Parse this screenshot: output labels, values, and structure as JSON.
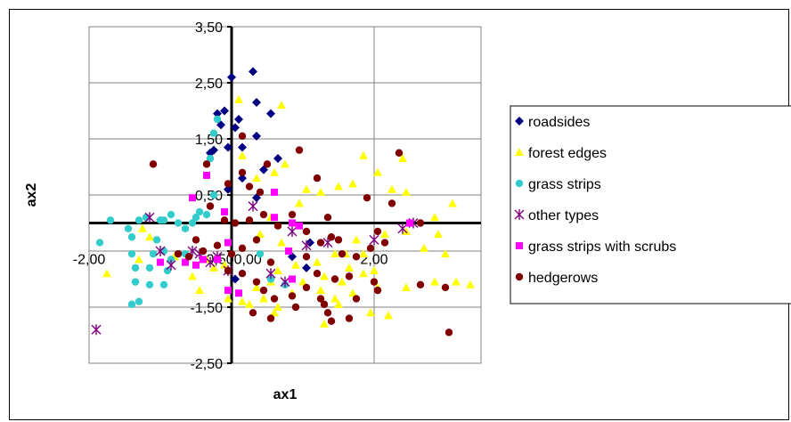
{
  "chart_data": {
    "type": "scatter",
    "title": "",
    "xlabel": "ax1",
    "ylabel": "ax2",
    "xlim": [
      -2.0,
      3.5
    ],
    "ylim": [
      -2.5,
      3.5
    ],
    "x_ticks": [
      {
        "value": -2.0,
        "label": "-2,00"
      },
      {
        "value": 0.0,
        "label": "-0,500,00"
      },
      {
        "value": 2.0,
        "label": "2,00"
      }
    ],
    "y_ticks": [
      {
        "value": 3.5,
        "label": "3,50"
      },
      {
        "value": 2.5,
        "label": "2,50"
      },
      {
        "value": 1.5,
        "label": "1,50"
      },
      {
        "value": 0.5,
        "label": "0,50"
      },
      {
        "value": -1.5,
        "label": "-1,50"
      },
      {
        "value": -2.5,
        "label": "-2,50"
      }
    ],
    "grid": true,
    "legend_position": "right",
    "series": [
      {
        "name": "roadsides",
        "marker": "diamond",
        "color": "#000080",
        "points": [
          [
            0.0,
            2.6
          ],
          [
            0.3,
            2.7
          ],
          [
            0.35,
            2.15
          ],
          [
            0.55,
            1.95
          ],
          [
            0.1,
            1.85
          ],
          [
            0.35,
            1.55
          ],
          [
            0.05,
            1.7
          ],
          [
            -0.2,
            1.95
          ],
          [
            -0.1,
            2.0
          ],
          [
            -0.15,
            1.75
          ],
          [
            -0.05,
            1.35
          ],
          [
            -0.25,
            1.3
          ],
          [
            -0.3,
            1.25
          ],
          [
            0.15,
            1.35
          ],
          [
            0.65,
            1.15
          ],
          [
            0.35,
            0.45
          ],
          [
            0.15,
            0.8
          ],
          [
            0.45,
            0.95
          ],
          [
            -0.05,
            0.6
          ],
          [
            0.05,
            -1.0
          ],
          [
            1.05,
            -0.8
          ],
          [
            1.1,
            -0.35
          ],
          [
            0.85,
            -0.6
          ]
        ]
      },
      {
        "name": "forest edges",
        "marker": "triangle",
        "color": "#ffff00",
        "points": [
          [
            0.1,
            2.2
          ],
          [
            0.7,
            2.1
          ],
          [
            0.15,
            1.2
          ],
          [
            0.35,
            0.8
          ],
          [
            0.6,
            0.9
          ],
          [
            0.75,
            1.05
          ],
          [
            0.95,
            0.35
          ],
          [
            1.05,
            0.6
          ],
          [
            1.25,
            0.55
          ],
          [
            1.5,
            0.65
          ],
          [
            1.7,
            0.7
          ],
          [
            1.85,
            1.2
          ],
          [
            2.05,
            0.9
          ],
          [
            2.25,
            0.6
          ],
          [
            2.4,
            1.15
          ],
          [
            2.45,
            0.55
          ],
          [
            2.85,
            0.1
          ],
          [
            3.1,
            0.35
          ],
          [
            3.0,
            -0.55
          ],
          [
            2.7,
            -0.45
          ],
          [
            2.45,
            -0.15
          ],
          [
            2.15,
            -0.2
          ],
          [
            1.85,
            -0.55
          ],
          [
            1.65,
            -0.8
          ],
          [
            1.45,
            -0.55
          ],
          [
            1.3,
            -0.95
          ],
          [
            1.2,
            -0.7
          ],
          [
            0.9,
            -0.75
          ],
          [
            0.65,
            -0.85
          ],
          [
            0.55,
            -1.05
          ],
          [
            0.45,
            -1.35
          ],
          [
            0.25,
            -1.45
          ],
          [
            0.15,
            -1.4
          ],
          [
            0.35,
            -1.15
          ],
          [
            0.65,
            -1.5
          ],
          [
            0.85,
            -1.25
          ],
          [
            1.0,
            -1.05
          ],
          [
            1.25,
            -1.2
          ],
          [
            1.45,
            -1.35
          ],
          [
            1.55,
            -1.05
          ],
          [
            1.7,
            -1.25
          ],
          [
            1.85,
            -0.9
          ],
          [
            2.0,
            -0.85
          ],
          [
            2.05,
            -1.15
          ],
          [
            2.2,
            -1.65
          ],
          [
            2.45,
            -1.15
          ],
          [
            2.85,
            -1.05
          ],
          [
            3.15,
            -1.05
          ],
          [
            3.35,
            -1.1
          ],
          [
            1.95,
            -1.6
          ],
          [
            1.5,
            -1.45
          ],
          [
            1.3,
            -1.8
          ],
          [
            0.6,
            -1.6
          ],
          [
            -0.25,
            -0.8
          ],
          [
            -0.45,
            -1.2
          ],
          [
            -0.55,
            -0.95
          ],
          [
            -0.8,
            -0.6
          ],
          [
            -1.15,
            -0.25
          ],
          [
            -1.25,
            -0.1
          ],
          [
            -1.3,
            -0.65
          ],
          [
            -1.75,
            -0.9
          ],
          [
            -0.35,
            -0.65
          ],
          [
            0.4,
            -0.2
          ],
          [
            0.55,
            0.1
          ],
          [
            0.7,
            -0.35
          ],
          [
            -0.1,
            -0.75
          ],
          [
            -0.05,
            -1.35
          ],
          [
            1.6,
            -0.55
          ],
          [
            1.75,
            -0.3
          ],
          [
            2.9,
            -0.2
          ]
        ]
      },
      {
        "name": "grass strips",
        "marker": "circle",
        "color": "#33cccc",
        "points": [
          [
            -1.7,
            0.05
          ],
          [
            -1.85,
            -0.35
          ],
          [
            -1.45,
            -0.1
          ],
          [
            -1.3,
            0.05
          ],
          [
            -1.2,
            0.1
          ],
          [
            -1.0,
            0.05
          ],
          [
            -0.95,
            0.05
          ],
          [
            -0.85,
            0.15
          ],
          [
            -0.75,
            0.0
          ],
          [
            -0.65,
            -0.1
          ],
          [
            -0.55,
            0.0
          ],
          [
            -0.5,
            0.1
          ],
          [
            -0.45,
            0.2
          ],
          [
            -0.35,
            0.15
          ],
          [
            -0.3,
            0.3
          ],
          [
            -0.25,
            0.5
          ],
          [
            -1.4,
            -0.25
          ],
          [
            -1.4,
            -0.55
          ],
          [
            -1.35,
            -0.8
          ],
          [
            -1.15,
            -0.8
          ],
          [
            -1.1,
            -0.55
          ],
          [
            -1.05,
            -0.3
          ],
          [
            -0.95,
            -0.5
          ],
          [
            -0.9,
            -0.85
          ],
          [
            -0.85,
            -0.65
          ],
          [
            -0.75,
            -0.55
          ],
          [
            -0.65,
            -0.55
          ],
          [
            -1.35,
            -1.05
          ],
          [
            -1.15,
            -1.1
          ],
          [
            -1.4,
            -1.45
          ],
          [
            -1.3,
            -1.4
          ],
          [
            -0.95,
            -1.1
          ],
          [
            -0.2,
            1.85
          ],
          [
            -0.25,
            1.6
          ],
          [
            -0.3,
            1.15
          ],
          [
            0.4,
            -0.55
          ],
          [
            0.75,
            -1.1
          ],
          [
            0.55,
            -1.0
          ]
        ]
      },
      {
        "name": "other types",
        "marker": "asterisk",
        "color": "#800080",
        "points": [
          [
            -1.9,
            -1.9
          ],
          [
            -1.15,
            0.1
          ],
          [
            -1.0,
            -0.5
          ],
          [
            -0.85,
            -0.75
          ],
          [
            -0.55,
            -0.5
          ],
          [
            -0.45,
            -0.55
          ],
          [
            -0.3,
            -0.7
          ],
          [
            -0.2,
            -0.6
          ],
          [
            -0.05,
            -0.85
          ],
          [
            0.3,
            0.3
          ],
          [
            0.55,
            -0.9
          ],
          [
            0.75,
            -1.05
          ],
          [
            0.85,
            -0.15
          ],
          [
            1.05,
            -0.4
          ],
          [
            1.35,
            -0.35
          ],
          [
            2.0,
            -0.3
          ],
          [
            2.4,
            -0.1
          ],
          [
            2.55,
            0.0
          ]
        ]
      },
      {
        "name": "grass strips with scrubs",
        "marker": "square",
        "color": "#ff00ff",
        "points": [
          [
            -0.35,
            0.85
          ],
          [
            -0.55,
            0.45
          ],
          [
            -0.1,
            0.2
          ],
          [
            0.6,
            0.55
          ],
          [
            0.6,
            0.1
          ],
          [
            0.85,
            0.0
          ],
          [
            0.95,
            -0.05
          ],
          [
            -1.0,
            -0.7
          ],
          [
            -0.65,
            -0.7
          ],
          [
            -0.5,
            -0.75
          ],
          [
            -0.4,
            -0.65
          ],
          [
            -0.2,
            -0.65
          ],
          [
            -0.05,
            -0.35
          ],
          [
            -0.05,
            -1.2
          ],
          [
            0.1,
            -1.25
          ],
          [
            0.8,
            -0.5
          ],
          [
            0.85,
            -1.0
          ],
          [
            2.5,
            0.0
          ]
        ]
      },
      {
        "name": "hedgerows",
        "marker": "circle",
        "color": "#800000",
        "points": [
          [
            -1.1,
            1.05
          ],
          [
            0.15,
            1.55
          ],
          [
            0.95,
            1.3
          ],
          [
            0.5,
            1.05
          ],
          [
            1.2,
            0.8
          ],
          [
            0.15,
            0.9
          ],
          [
            -0.35,
            1.05
          ],
          [
            -0.05,
            0.7
          ],
          [
            0.25,
            0.65
          ],
          [
            0.4,
            0.55
          ],
          [
            -0.3,
            0.3
          ],
          [
            -0.1,
            0.05
          ],
          [
            0.05,
            0.0
          ],
          [
            0.25,
            0.05
          ],
          [
            0.45,
            0.15
          ],
          [
            0.65,
            -0.05
          ],
          [
            0.85,
            0.15
          ],
          [
            1.35,
            0.1
          ],
          [
            1.05,
            -0.15
          ],
          [
            1.25,
            -0.35
          ],
          [
            1.5,
            -0.3
          ],
          [
            1.55,
            -0.55
          ],
          [
            1.75,
            -0.6
          ],
          [
            1.95,
            -0.45
          ],
          [
            2.15,
            -0.35
          ],
          [
            2.05,
            -0.15
          ],
          [
            2.25,
            0.35
          ],
          [
            2.35,
            1.25
          ],
          [
            1.9,
            0.45
          ],
          [
            2.65,
            0.0
          ],
          [
            1.65,
            -0.95
          ],
          [
            1.45,
            -1.0
          ],
          [
            1.2,
            -0.9
          ],
          [
            1.05,
            -1.15
          ],
          [
            0.85,
            -1.3
          ],
          [
            0.6,
            -1.35
          ],
          [
            0.45,
            -1.2
          ],
          [
            0.35,
            -1.05
          ],
          [
            0.15,
            -0.9
          ],
          [
            -0.05,
            -0.85
          ],
          [
            0.0,
            -0.55
          ],
          [
            0.15,
            -0.45
          ],
          [
            -0.2,
            -0.4
          ],
          [
            -0.4,
            -0.5
          ],
          [
            -0.6,
            -0.6
          ],
          [
            -0.75,
            -0.55
          ],
          [
            -0.5,
            -0.3
          ],
          [
            0.35,
            -0.3
          ],
          [
            0.55,
            -0.7
          ],
          [
            1.05,
            -0.6
          ],
          [
            1.25,
            -1.35
          ],
          [
            1.3,
            -1.45
          ],
          [
            1.75,
            -1.35
          ],
          [
            2.0,
            -1.05
          ],
          [
            2.05,
            -1.2
          ],
          [
            2.65,
            -1.1
          ],
          [
            3.0,
            -1.15
          ],
          [
            1.35,
            -1.6
          ],
          [
            1.65,
            -1.7
          ],
          [
            1.4,
            -1.75
          ],
          [
            0.9,
            -1.5
          ],
          [
            0.55,
            -1.7
          ],
          [
            0.3,
            -1.6
          ],
          [
            3.05,
            -1.95
          ],
          [
            1.4,
            -0.25
          ]
        ]
      }
    ]
  }
}
